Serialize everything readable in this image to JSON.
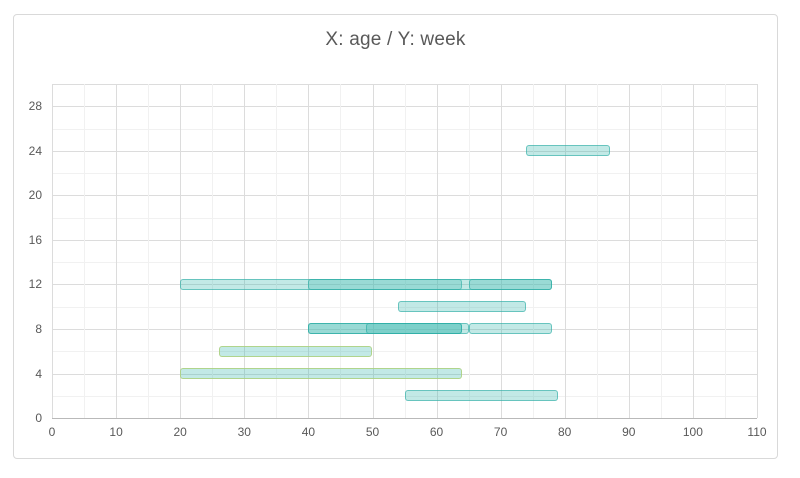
{
  "title": "X: age / Y: week",
  "chart_data": {
    "type": "bar",
    "subtype": "horizontal-span-gantt",
    "title": "X: age / Y: week",
    "xlabel": "age",
    "ylabel": "week",
    "xlim": [
      0,
      110
    ],
    "ylim": [
      0,
      30
    ],
    "x_tick_labels": [
      "0",
      "10",
      "20",
      "30",
      "40",
      "50",
      "60",
      "70",
      "80",
      "90",
      "100",
      "110"
    ],
    "x_ticks": [
      0,
      10,
      20,
      30,
      40,
      50,
      60,
      70,
      80,
      90,
      100,
      110
    ],
    "y_tick_labels": [
      "0",
      "4",
      "8",
      "12",
      "16",
      "20",
      "24",
      "28"
    ],
    "y_ticks": [
      0,
      4,
      8,
      12,
      16,
      20,
      24,
      28
    ],
    "x_minor_step": 5,
    "y_minor_step": 2,
    "grid": true,
    "legend": false,
    "bar_thickness_weeks": 1,
    "bars": [
      {
        "week": 24,
        "age_start": 74,
        "age_end": 87,
        "style": "teal"
      },
      {
        "week": 12,
        "age_start": 20,
        "age_end": 64,
        "style": "teal"
      },
      {
        "week": 12,
        "age_start": 40,
        "age_end": 78,
        "style": "teal"
      },
      {
        "week": 12,
        "age_start": 65,
        "age_end": 78,
        "style": "teal"
      },
      {
        "week": 10,
        "age_start": 54,
        "age_end": 74,
        "style": "teal"
      },
      {
        "week": 8,
        "age_start": 40,
        "age_end": 65,
        "style": "teal"
      },
      {
        "week": 8,
        "age_start": 40,
        "age_end": 64,
        "style": "teal"
      },
      {
        "week": 8,
        "age_start": 49,
        "age_end": 64,
        "style": "teal"
      },
      {
        "week": 8,
        "age_start": 65,
        "age_end": 78,
        "style": "teal"
      },
      {
        "week": 6,
        "age_start": 26,
        "age_end": 50,
        "style": "green"
      },
      {
        "week": 4,
        "age_start": 20,
        "age_end": 64,
        "style": "green"
      },
      {
        "week": 2,
        "age_start": 55,
        "age_end": 79,
        "style": "teal"
      }
    ],
    "colors": {
      "bar_fill": "rgba(70,187,179,0.33)",
      "bar_border_teal": "rgba(42,172,163,0.6)",
      "bar_border_green": "rgba(174,209,131,0.9)",
      "grid_major": "#dcdcdc",
      "grid_minor": "#f1f1f1",
      "axis_line": "#b9b9b9",
      "text": "#595959",
      "frame_border": "#d9d9d9"
    }
  }
}
